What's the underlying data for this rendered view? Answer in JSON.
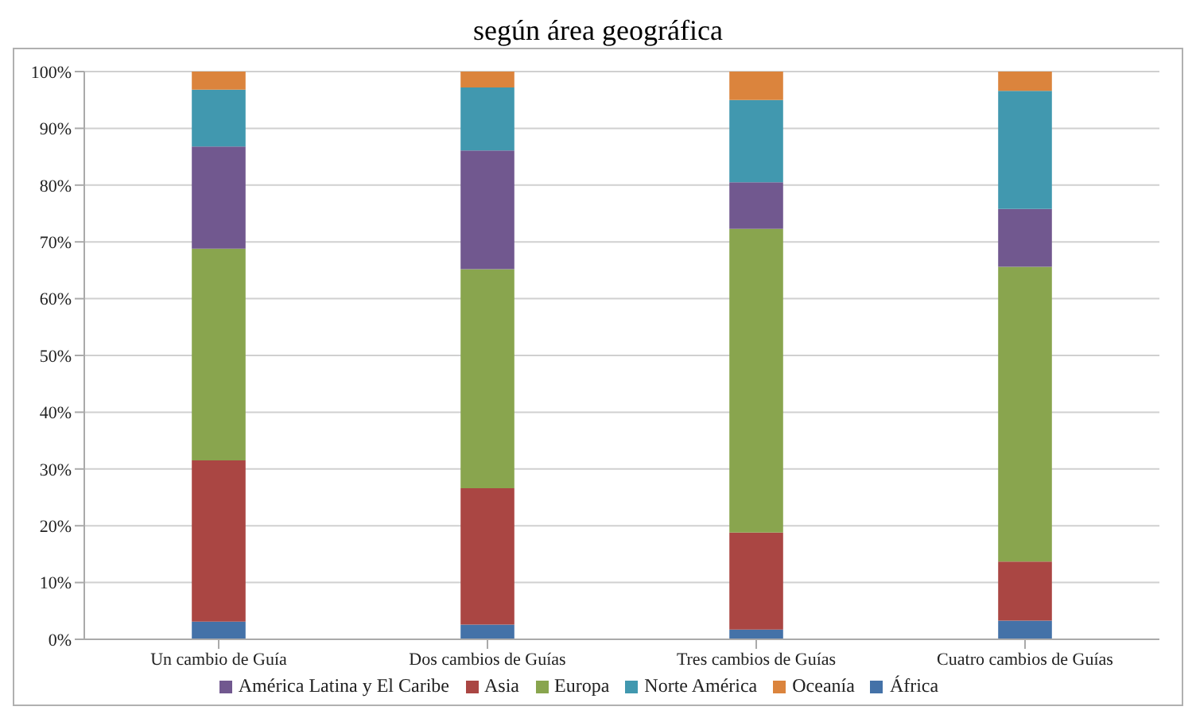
{
  "chart_data": {
    "type": "bar",
    "stacked": true,
    "title": "según área geográfica",
    "categories": [
      "Un cambio de Guía",
      "Dos cambios de Guías",
      "Tres cambios de Guías",
      "Cuatro cambios de Guías"
    ],
    "series": [
      {
        "name": "África",
        "color": "#4472a8",
        "values": [
          3.1,
          2.6,
          1.7,
          3.3
        ]
      },
      {
        "name": "Asia",
        "color": "#aa4643",
        "values": [
          28.4,
          24.0,
          17.1,
          10.4
        ]
      },
      {
        "name": "Europa",
        "color": "#89a54e",
        "values": [
          37.3,
          38.6,
          53.5,
          51.9
        ]
      },
      {
        "name": "América Latina y El Caribe",
        "color": "#71588f",
        "values": [
          18.0,
          20.9,
          8.2,
          10.2
        ]
      },
      {
        "name": "Norte América",
        "color": "#4198af",
        "values": [
          10.0,
          11.1,
          14.5,
          20.8
        ]
      },
      {
        "name": "Oceanía",
        "color": "#db843d",
        "values": [
          3.2,
          2.8,
          5.0,
          3.4
        ]
      }
    ],
    "ylim": [
      0,
      100
    ],
    "yticks": [
      {
        "value": 0,
        "label": "0%"
      },
      {
        "value": 10,
        "label": "10%"
      },
      {
        "value": 20,
        "label": "20%"
      },
      {
        "value": 30,
        "label": "30%"
      },
      {
        "value": 40,
        "label": "40%"
      },
      {
        "value": 50,
        "label": "50%"
      },
      {
        "value": 60,
        "label": "60%"
      },
      {
        "value": 70,
        "label": "70%"
      },
      {
        "value": 80,
        "label": "80%"
      },
      {
        "value": 90,
        "label": "90%"
      },
      {
        "value": 100,
        "label": "100%"
      }
    ],
    "grid": "y",
    "legend": "bottom"
  }
}
